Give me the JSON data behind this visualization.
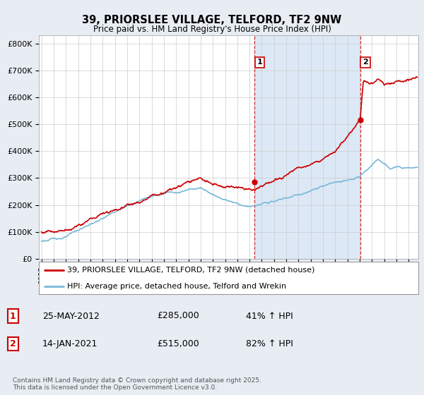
{
  "title": "39, PRIORSLEE VILLAGE, TELFORD, TF2 9NW",
  "subtitle": "Price paid vs. HM Land Registry's House Price Index (HPI)",
  "ylabel_ticks": [
    "£0",
    "£100K",
    "£200K",
    "£300K",
    "£400K",
    "£500K",
    "£600K",
    "£700K",
    "£800K"
  ],
  "ytick_values": [
    0,
    100000,
    200000,
    300000,
    400000,
    500000,
    600000,
    700000,
    800000
  ],
  "ylim": [
    0,
    830000
  ],
  "xlim_start": 1994.8,
  "xlim_end": 2025.8,
  "hpi_color": "#7ab8d9",
  "price_color": "#cc0000",
  "sale1_x": 2012.4,
  "sale1_y": 285000,
  "sale2_x": 2021.04,
  "sale2_y": 515000,
  "legend_line1": "39, PRIORSLEE VILLAGE, TELFORD, TF2 9NW (detached house)",
  "legend_line2": "HPI: Average price, detached house, Telford and Wrekin",
  "table_row1": [
    "1",
    "25-MAY-2012",
    "£285,000",
    "41% ↑ HPI"
  ],
  "table_row2": [
    "2",
    "14-JAN-2021",
    "£515,000",
    "82% ↑ HPI"
  ],
  "footer": "Contains HM Land Registry data © Crown copyright and database right 2025.\nThis data is licensed under the Open Government Licence v3.0.",
  "background_color": "#e8edf4",
  "plot_bg_color": "#ffffff",
  "shade_color": "#dce8f5",
  "grid_color": "#cccccc"
}
